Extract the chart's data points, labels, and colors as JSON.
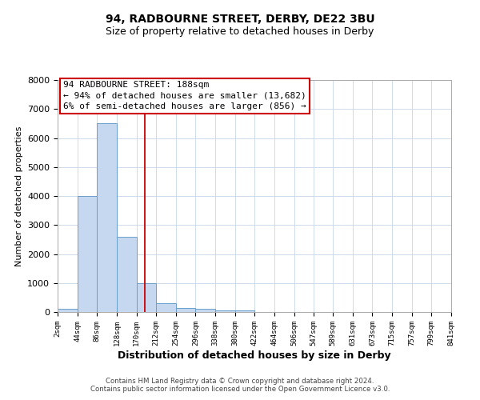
{
  "title1": "94, RADBOURNE STREET, DERBY, DE22 3BU",
  "title2": "Size of property relative to detached houses in Derby",
  "xlabel": "Distribution of detached houses by size in Derby",
  "ylabel": "Number of detached properties",
  "bin_edges": [
    2,
    44,
    86,
    128,
    170,
    212,
    254,
    296,
    338,
    380,
    422,
    464,
    506,
    547,
    589,
    631,
    673,
    715,
    757,
    799,
    841
  ],
  "bar_heights": [
    100,
    4000,
    6500,
    2600,
    1000,
    300,
    150,
    100,
    50,
    50,
    0,
    0,
    0,
    0,
    0,
    0,
    0,
    0,
    0,
    0
  ],
  "bar_color": "#c5d8f0",
  "bar_edge_color": "#6aa0cc",
  "property_size": 188,
  "red_line_color": "#cc0000",
  "annotation_line1": "94 RADBOURNE STREET: 188sqm",
  "annotation_line2": "← 94% of detached houses are smaller (13,682)",
  "annotation_line3": "6% of semi-detached houses are larger (856) →",
  "annotation_box_color": "#cc0000",
  "ylim": [
    0,
    8000
  ],
  "yticks": [
    0,
    1000,
    2000,
    3000,
    4000,
    5000,
    6000,
    7000,
    8000
  ],
  "footnote1": "Contains HM Land Registry data © Crown copyright and database right 2024.",
  "footnote2": "Contains public sector information licensed under the Open Government Licence v3.0.",
  "background_color": "#ffffff",
  "grid_color": "#c8d4e8"
}
